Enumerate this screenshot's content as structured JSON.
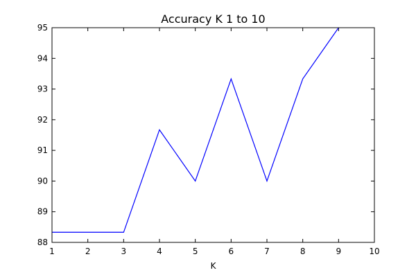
{
  "chart_data": {
    "type": "line",
    "title": "Accuracy K 1 to 10",
    "xlabel": "K",
    "ylabel": "",
    "xlim": [
      1,
      10
    ],
    "ylim": [
      88,
      95
    ],
    "xticks": [
      1,
      2,
      3,
      4,
      5,
      6,
      7,
      8,
      9,
      10
    ],
    "yticks": [
      88,
      89,
      90,
      91,
      92,
      93,
      94,
      95
    ],
    "grid": false,
    "series": [
      {
        "color": "#0000ff",
        "x": [
          1,
          2,
          3,
          4,
          5,
          6,
          7,
          8,
          9
        ],
        "y": [
          88.33,
          88.33,
          88.33,
          91.67,
          90.0,
          93.33,
          90.0,
          93.33,
          95.0
        ]
      }
    ]
  }
}
